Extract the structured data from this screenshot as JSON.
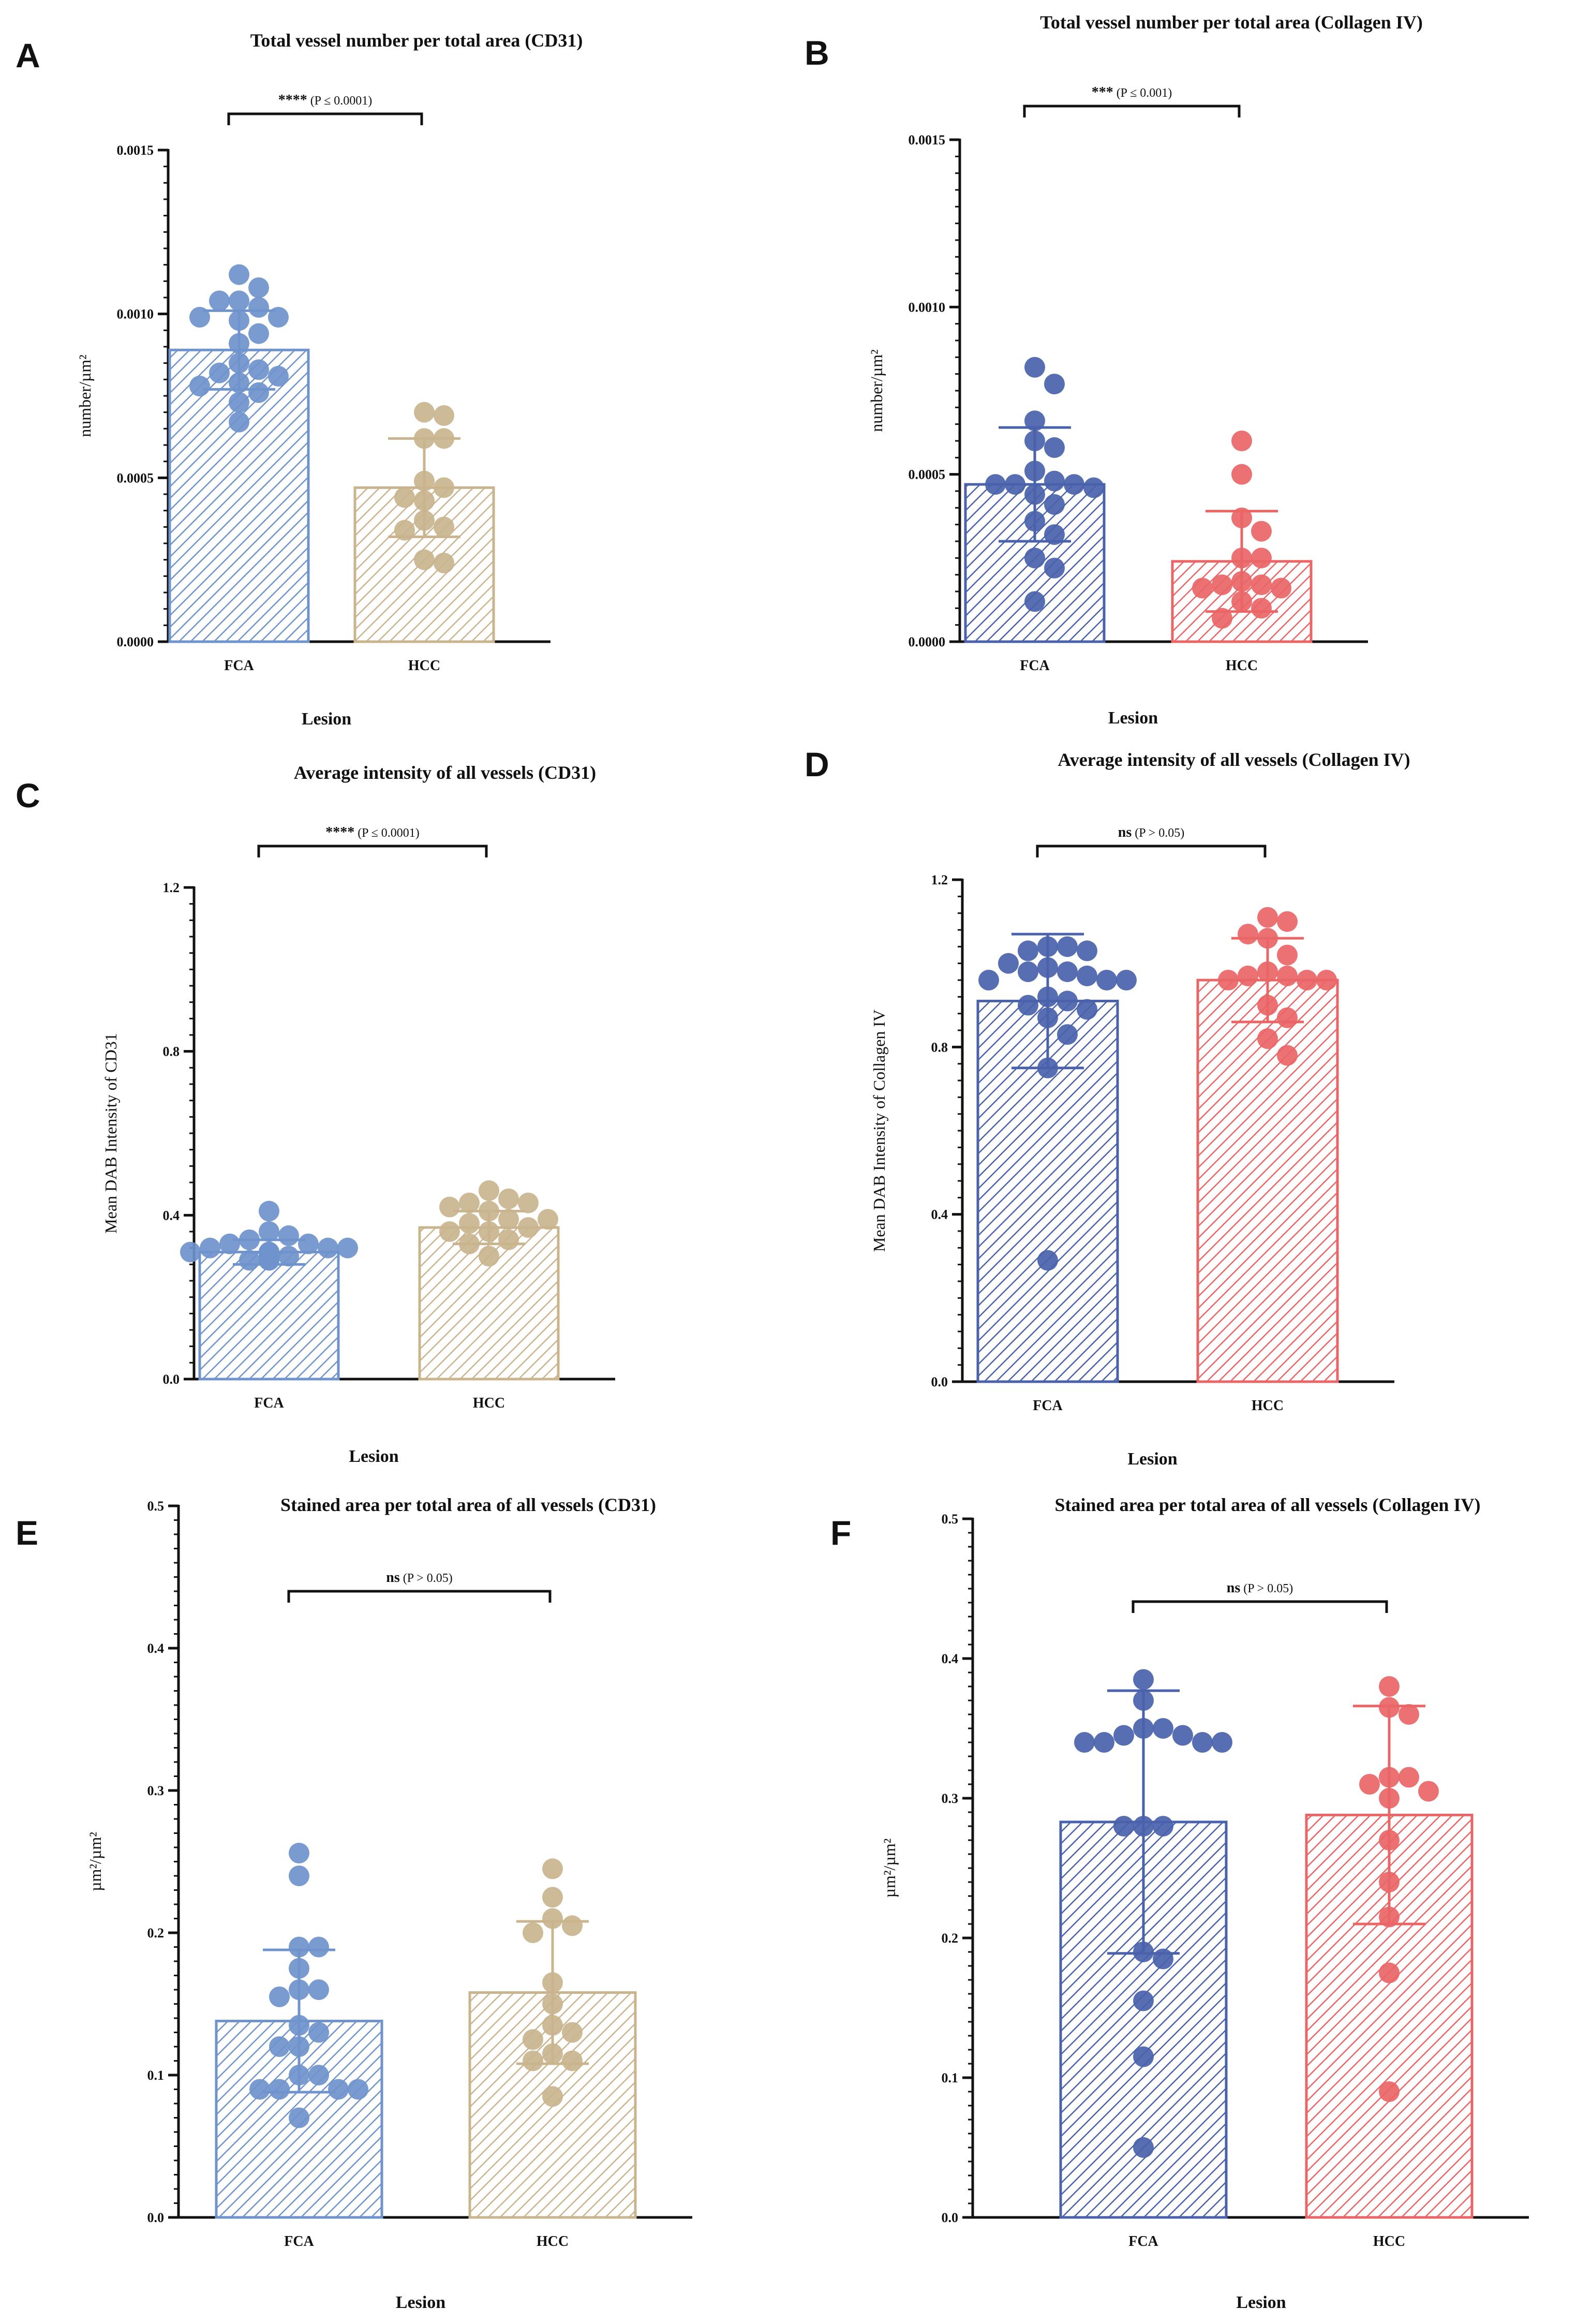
{
  "colors": {
    "cd31_fca": "#6f93cc",
    "cd31_hcc": "#c9b48e",
    "col_fca": "#4a62ab",
    "col_hcc": "#e96566",
    "axis": "#111111"
  },
  "chart_data": [
    {
      "panel": "A",
      "type": "bar",
      "title": "Total vessel number per total area (CD31)",
      "xlabel": "Lesion",
      "ylabel": "number/µm²",
      "ylim": [
        0,
        0.0015
      ],
      "yticks": [
        0,
        0.0005,
        0.001,
        0.0015
      ],
      "ytick_labels": [
        "0.0000",
        "0.0005",
        "0.0010",
        "0.0015"
      ],
      "categories": [
        "FCA",
        "HCC"
      ],
      "palette": [
        "cd31_fca",
        "cd31_hcc"
      ],
      "means": [
        0.00089,
        0.00047
      ],
      "sd": [
        0.00012,
        0.00015
      ],
      "points": [
        [
          0.00112,
          0.00108,
          0.00104,
          0.00104,
          0.00102,
          0.00099,
          0.00099,
          0.00098,
          0.00094,
          0.00091,
          0.00085,
          0.00083,
          0.00082,
          0.00081,
          0.00079,
          0.00078,
          0.00076,
          0.00073,
          0.00067
        ],
        [
          0.0007,
          0.00069,
          0.00062,
          0.00062,
          0.00049,
          0.00047,
          0.00044,
          0.00043,
          0.00037,
          0.00035,
          0.00034,
          0.00025,
          0.00024
        ]
      ],
      "significance": {
        "stars": "****",
        "text": " (P ≤ 0.0001)"
      }
    },
    {
      "panel": "B",
      "type": "bar",
      "title": "Total vessel number per total area (Collagen IV)",
      "xlabel": "Lesion",
      "ylabel": "number/µm²",
      "ylim": [
        0,
        0.0015
      ],
      "yticks": [
        0,
        0.0005,
        0.001,
        0.0015
      ],
      "ytick_labels": [
        "0.0000",
        "0.0005",
        "0.0010",
        "0.0015"
      ],
      "categories": [
        "FCA",
        "HCC"
      ],
      "palette": [
        "col_fca",
        "col_hcc"
      ],
      "means": [
        0.00047,
        0.00024
      ],
      "sd": [
        0.00017,
        0.00015
      ],
      "points": [
        [
          0.00082,
          0.00077,
          0.00066,
          0.0006,
          0.00058,
          0.00051,
          0.00048,
          0.00047,
          0.00047,
          0.00047,
          0.00046,
          0.00044,
          0.00041,
          0.00036,
          0.00032,
          0.00025,
          0.00022,
          0.00012
        ],
        [
          0.0006,
          0.0005,
          0.00037,
          0.00033,
          0.00025,
          0.00025,
          0.00018,
          0.00017,
          0.00017,
          0.00016,
          0.00016,
          0.00012,
          0.0001,
          7e-05
        ]
      ],
      "significance": {
        "stars": "***",
        "text": " (P ≤ 0.001)"
      }
    },
    {
      "panel": "C",
      "type": "bar",
      "title": "Average intensity of all vessels (CD31)",
      "xlabel": "Lesion",
      "ylabel": "Mean DAB Intensity of CD31",
      "ylim": [
        0,
        1.2
      ],
      "yticks": [
        0,
        0.4,
        0.8,
        1.2
      ],
      "ytick_labels": [
        "0.0",
        "0.4",
        "0.8",
        "1.2"
      ],
      "categories": [
        "FCA",
        "HCC"
      ],
      "palette": [
        "cd31_fca",
        "cd31_hcc"
      ],
      "means": [
        0.31,
        0.37
      ],
      "sd": [
        0.03,
        0.04
      ],
      "points": [
        [
          0.41,
          0.36,
          0.35,
          0.34,
          0.33,
          0.33,
          0.32,
          0.32,
          0.32,
          0.31,
          0.31,
          0.31,
          0.3,
          0.3,
          0.3,
          0.29,
          0.29,
          0.29
        ],
        [
          0.46,
          0.44,
          0.43,
          0.43,
          0.42,
          0.41,
          0.39,
          0.39,
          0.38,
          0.37,
          0.36,
          0.36,
          0.34,
          0.33,
          0.3
        ]
      ],
      "significance": {
        "stars": "****",
        "text": " (P ≤ 0.0001)"
      }
    },
    {
      "panel": "D",
      "type": "bar",
      "title": "Average intensity of all vessels (Collagen IV)",
      "xlabel": "Lesion",
      "ylabel": "Mean DAB Intensity of Collagen IV",
      "ylim": [
        0,
        1.2
      ],
      "yticks": [
        0,
        0.4,
        0.8,
        1.2
      ],
      "ytick_labels": [
        "0.0",
        "0.4",
        "0.8",
        "1.2"
      ],
      "categories": [
        "FCA",
        "HCC"
      ],
      "palette": [
        "col_fca",
        "col_hcc"
      ],
      "means": [
        0.91,
        0.96
      ],
      "sd": [
        0.16,
        0.1
      ],
      "points": [
        [
          1.04,
          1.04,
          1.03,
          1.03,
          1.0,
          0.99,
          0.98,
          0.98,
          0.97,
          0.96,
          0.96,
          0.96,
          0.92,
          0.91,
          0.9,
          0.89,
          0.87,
          0.83,
          0.75,
          0.29
        ],
        [
          1.11,
          1.1,
          1.07,
          1.06,
          1.02,
          0.98,
          0.97,
          0.97,
          0.96,
          0.96,
          0.96,
          0.9,
          0.87,
          0.82,
          0.78
        ]
      ],
      "significance": {
        "stars": "ns",
        "text": " (P > 0.05)"
      }
    },
    {
      "panel": "E",
      "type": "bar",
      "title": "Stained area per total area of all vessels (CD31)",
      "xlabel": "Lesion",
      "ylabel": "µm²/µm²",
      "ylim": [
        0,
        0.5
      ],
      "yticks": [
        0,
        0.1,
        0.2,
        0.3,
        0.4,
        0.5
      ],
      "ytick_labels": [
        "0.0",
        "0.1",
        "0.2",
        "0.3",
        "0.4",
        "0.5"
      ],
      "categories": [
        "FCA",
        "HCC"
      ],
      "palette": [
        "cd31_fca",
        "cd31_hcc"
      ],
      "means": [
        0.138,
        0.158
      ],
      "sd": [
        0.05,
        0.05
      ],
      "points": [
        [
          0.256,
          0.24,
          0.19,
          0.19,
          0.175,
          0.16,
          0.16,
          0.155,
          0.135,
          0.13,
          0.12,
          0.12,
          0.1,
          0.1,
          0.09,
          0.09,
          0.09,
          0.09,
          0.07
        ],
        [
          0.245,
          0.225,
          0.21,
          0.205,
          0.2,
          0.165,
          0.15,
          0.135,
          0.13,
          0.125,
          0.115,
          0.11,
          0.11,
          0.085
        ]
      ],
      "significance": {
        "stars": "ns",
        "text": " (P > 0.05)"
      }
    },
    {
      "panel": "F",
      "type": "bar",
      "title": "Stained area per total area of all vessels (Collagen IV)",
      "xlabel": "Lesion",
      "ylabel": "µm²/µm²",
      "ylim": [
        0,
        0.5
      ],
      "yticks": [
        0,
        0.1,
        0.2,
        0.3,
        0.4,
        0.5
      ],
      "ytick_labels": [
        "0.0",
        "0.1",
        "0.2",
        "0.3",
        "0.4",
        "0.5"
      ],
      "categories": [
        "FCA",
        "HCC"
      ],
      "palette": [
        "col_fca",
        "col_hcc"
      ],
      "means": [
        0.283,
        0.288
      ],
      "sd": [
        0.094,
        0.078
      ],
      "points": [
        [
          0.385,
          0.37,
          0.35,
          0.35,
          0.345,
          0.345,
          0.34,
          0.34,
          0.34,
          0.34,
          0.28,
          0.28,
          0.28,
          0.19,
          0.185,
          0.155,
          0.115,
          0.05
        ],
        [
          0.38,
          0.365,
          0.36,
          0.315,
          0.315,
          0.31,
          0.305,
          0.3,
          0.27,
          0.24,
          0.215,
          0.175,
          0.09
        ]
      ],
      "significance": {
        "stars": "ns",
        "text": " (P > 0.05)"
      }
    }
  ]
}
